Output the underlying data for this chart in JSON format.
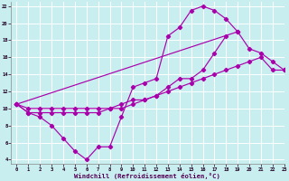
{
  "bg_color": "#c8eef0",
  "grid_color": "#b0dde0",
  "line_color": "#aa00aa",
  "xlabel": "Windchill (Refroidissement éolien,°C)",
  "xmin": -0.5,
  "xmax": 23,
  "ymin": 3.5,
  "ymax": 22.5,
  "yticks": [
    4,
    6,
    8,
    10,
    12,
    14,
    16,
    18,
    20,
    22
  ],
  "xticks": [
    0,
    1,
    2,
    3,
    4,
    5,
    6,
    7,
    8,
    9,
    10,
    11,
    12,
    13,
    14,
    15,
    16,
    17,
    18,
    19,
    20,
    21,
    22,
    23
  ],
  "curve1_x": [
    0,
    1,
    2,
    3,
    4,
    5,
    6,
    7,
    8,
    9,
    10,
    11,
    12,
    13,
    14,
    15,
    16,
    17,
    18,
    19
  ],
  "curve1_y": [
    10.5,
    9.5,
    9.0,
    8.0,
    6.5,
    5.0,
    4.0,
    5.5,
    5.5,
    9.0,
    12.5,
    13.0,
    13.5,
    18.5,
    19.5,
    21.5,
    22.0,
    21.5,
    20.5,
    19.0
  ],
  "curve2_x": [
    0,
    1,
    2,
    3,
    4,
    5,
    6,
    7,
    8,
    9,
    10,
    11,
    12,
    13,
    14,
    15,
    16,
    17,
    18
  ],
  "curve2_y": [
    10.5,
    9.5,
    9.5,
    9.5,
    9.5,
    9.5,
    9.5,
    9.5,
    10.0,
    10.0,
    10.5,
    11.0,
    11.5,
    12.5,
    13.5,
    13.5,
    14.5,
    16.5,
    18.5
  ],
  "curve3_x": [
    0,
    1,
    2,
    3,
    4,
    5,
    6,
    7,
    8,
    9,
    10,
    11,
    12,
    13,
    14,
    15,
    16,
    17,
    18,
    19,
    20,
    21,
    22,
    23
  ],
  "curve3_y": [
    10.5,
    10.0,
    10.0,
    10.0,
    10.0,
    10.0,
    10.0,
    10.0,
    10.0,
    10.5,
    11.0,
    11.0,
    11.5,
    12.0,
    12.5,
    13.0,
    13.5,
    14.0,
    14.5,
    15.0,
    15.5,
    16.0,
    14.5,
    14.5
  ],
  "curve4_x": [
    0,
    19,
    20,
    21,
    22,
    23
  ],
  "curve4_y": [
    10.5,
    19.0,
    17.0,
    16.5,
    15.5,
    14.5
  ]
}
